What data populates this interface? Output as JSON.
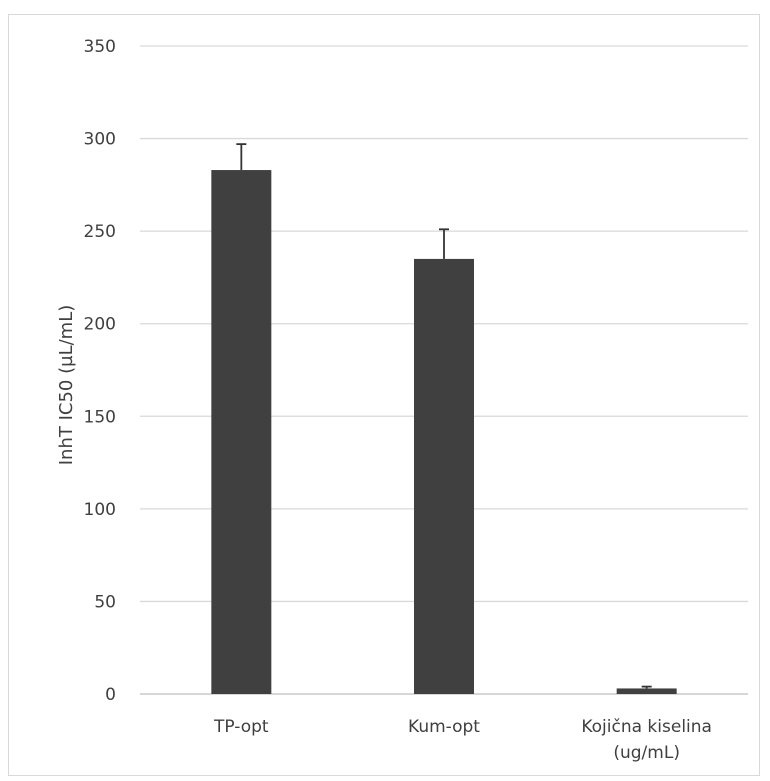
{
  "chart_data": {
    "type": "bar",
    "title": "",
    "xlabel": "",
    "ylabel": "InhT IC50 (µL/mL)",
    "ylim": [
      0,
      350
    ],
    "yticks": [
      0,
      50,
      100,
      150,
      200,
      250,
      300,
      350
    ],
    "grid": true,
    "legend": "none",
    "categories": [
      [
        "TP-opt"
      ],
      [
        "Kum-opt"
      ],
      [
        "Kojična kiselina",
        "(ug/mL)"
      ]
    ],
    "values": [
      283,
      235,
      3
    ],
    "errors": [
      14,
      16,
      1
    ],
    "colors": {
      "bar": "#404040",
      "grid": "#d9d9d9",
      "text": "#404040"
    }
  }
}
